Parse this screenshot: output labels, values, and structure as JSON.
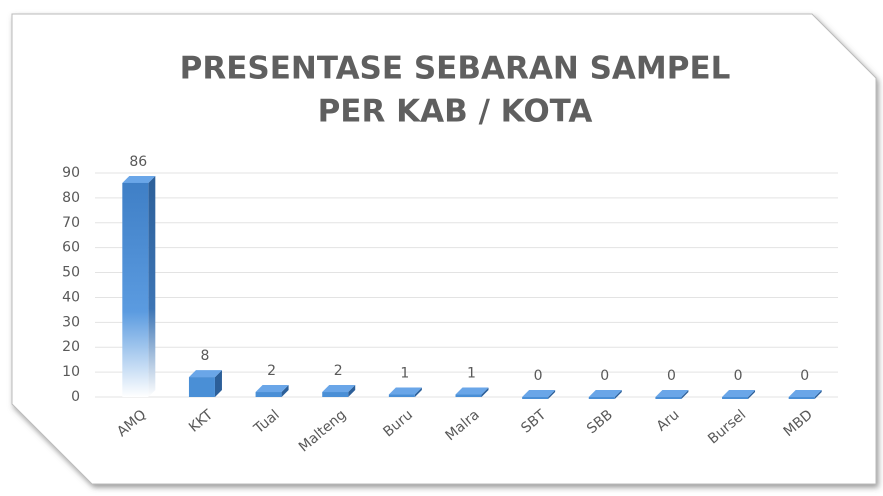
{
  "chart_data": {
    "type": "bar",
    "title": [
      "PRESENTASE SEBARAN SAMPEL",
      "PER KAB / KOTA"
    ],
    "categories": [
      "AMQ",
      "KKT",
      "Tual",
      "Malteng",
      "Buru",
      "Malra",
      "SBT",
      "SBB",
      "Aru",
      "Bursel",
      "MBD"
    ],
    "values": [
      86,
      8,
      2,
      2,
      1,
      1,
      0,
      0,
      0,
      0,
      0
    ],
    "color": "#4a8fd6",
    "ylim": [
      0,
      90
    ],
    "yticks": [
      0,
      10,
      20,
      30,
      40,
      50,
      60,
      70,
      80,
      90
    ],
    "grid": true
  }
}
